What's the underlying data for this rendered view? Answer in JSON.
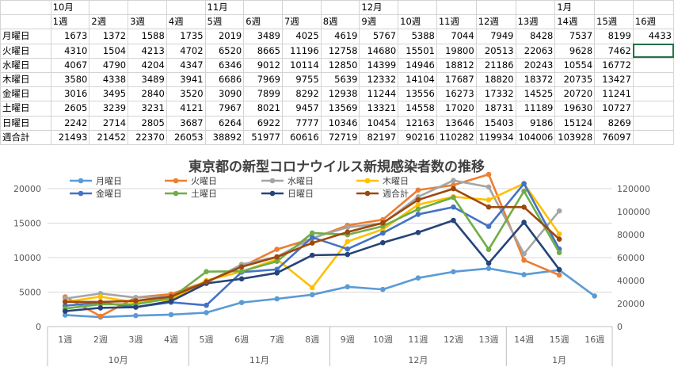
{
  "sheet": {
    "month_row": [
      "",
      "10月",
      "",
      "",
      "",
      "11月",
      "",
      "",
      "",
      "12月",
      "",
      "",
      "",
      "",
      "1月",
      "",
      ""
    ],
    "week_row": [
      "",
      "1週",
      "2週",
      "3週",
      "4週",
      "5週",
      "6週",
      "7週",
      "8週",
      "9週",
      "10週",
      "11週",
      "12週",
      "13週",
      "14週",
      "15週",
      "16週"
    ],
    "rows": [
      {
        "label": "月曜日",
        "cells": [
          "1673",
          "1372",
          "1588",
          "1735",
          "2019",
          "3489",
          "4025",
          "4619",
          "5767",
          "5388",
          "7044",
          "7949",
          "8428",
          "7537",
          "8199",
          "4433"
        ]
      },
      {
        "label": "火曜日",
        "cells": [
          "4310",
          "1504",
          "4213",
          "4702",
          "6520",
          "8665",
          "11196",
          "12758",
          "14680",
          "15501",
          "19800",
          "20513",
          "22063",
          "9628",
          "7462",
          ""
        ]
      },
      {
        "label": "水曜日",
        "cells": [
          "4067",
          "4790",
          "4204",
          "4347",
          "6346",
          "9012",
          "10114",
          "12850",
          "14399",
          "14946",
          "18812",
          "21186",
          "20243",
          "10554",
          "16772",
          ""
        ]
      },
      {
        "label": "木曜日",
        "cells": [
          "3580",
          "4338",
          "3489",
          "3941",
          "6686",
          "7969",
          "9755",
          "5639",
          "12332",
          "14104",
          "17687",
          "18820",
          "18372",
          "20735",
          "13427",
          ""
        ]
      },
      {
        "label": "金曜日",
        "cells": [
          "3016",
          "3495",
          "2840",
          "3520",
          "3090",
          "7899",
          "8292",
          "12938",
          "11244",
          "13556",
          "16273",
          "17332",
          "14525",
          "20720",
          "11241",
          ""
        ]
      },
      {
        "label": "土曜日",
        "cells": [
          "2605",
          "3239",
          "3231",
          "4121",
          "7967",
          "8021",
          "9457",
          "13569",
          "13321",
          "14558",
          "17020",
          "18731",
          "11189",
          "19630",
          "10727",
          ""
        ]
      },
      {
        "label": "日曜日",
        "cells": [
          "2242",
          "2714",
          "2805",
          "3687",
          "6264",
          "6922",
          "7777",
          "10346",
          "10454",
          "12163",
          "13646",
          "15403",
          "9186",
          "15124",
          "8269",
          ""
        ]
      },
      {
        "label": "週合計",
        "cells": [
          "21493",
          "21452",
          "22370",
          "26053",
          "38892",
          "51977",
          "60616",
          "72719",
          "82197",
          "90216",
          "110282",
          "119934",
          "104006",
          "103928",
          "76097",
          ""
        ]
      }
    ]
  },
  "chart_data": {
    "type": "line",
    "title": "東京都の新型コロナウイルス新規感染者数の推移",
    "categories": [
      "1週",
      "2週",
      "3週",
      "4週",
      "5週",
      "6週",
      "7週",
      "8週",
      "9週",
      "10週",
      "11週",
      "12週",
      "13週",
      "14週",
      "15週",
      "16週"
    ],
    "groups": [
      {
        "label": "10月",
        "span": [
          0,
          3
        ]
      },
      {
        "label": "11月",
        "span": [
          4,
          7
        ]
      },
      {
        "label": "12月",
        "span": [
          8,
          12
        ]
      },
      {
        "label": "1月",
        "span": [
          13,
          15
        ]
      }
    ],
    "ylim_left": [
      0,
      20000
    ],
    "yticks_left": [
      0,
      5000,
      10000,
      15000,
      20000
    ],
    "ylim_right": [
      0,
      120000
    ],
    "yticks_right": [
      0,
      20000,
      40000,
      60000,
      80000,
      100000,
      120000
    ],
    "grid": true,
    "legend": "top",
    "series": [
      {
        "name": "月曜日",
        "color": "#5B9BD5",
        "axis": "left",
        "values": [
          1673,
          1372,
          1588,
          1735,
          2019,
          3489,
          4025,
          4619,
          5767,
          5388,
          7044,
          7949,
          8428,
          7537,
          8199,
          4433
        ]
      },
      {
        "name": "火曜日",
        "color": "#ED7D31",
        "axis": "left",
        "values": [
          4310,
          1504,
          4213,
          4702,
          6520,
          8665,
          11196,
          12758,
          14680,
          15501,
          19800,
          20513,
          22063,
          9628,
          7462,
          null
        ]
      },
      {
        "name": "水曜日",
        "color": "#A5A5A5",
        "axis": "left",
        "values": [
          4067,
          4790,
          4204,
          4347,
          6346,
          9012,
          10114,
          12850,
          14399,
          14946,
          18812,
          21186,
          20243,
          10554,
          16772,
          null
        ]
      },
      {
        "name": "木曜日",
        "color": "#FFC000",
        "axis": "left",
        "values": [
          3580,
          4338,
          3489,
          3941,
          6686,
          7969,
          9755,
          5639,
          12332,
          14104,
          17687,
          18820,
          18372,
          20735,
          13427,
          null
        ]
      },
      {
        "name": "金曜日",
        "color": "#4472C4",
        "axis": "left",
        "values": [
          3016,
          3495,
          2840,
          3520,
          3090,
          7899,
          8292,
          12938,
          11244,
          13556,
          16273,
          17332,
          14525,
          20720,
          11241,
          null
        ]
      },
      {
        "name": "土曜日",
        "color": "#70AD47",
        "axis": "left",
        "values": [
          2605,
          3239,
          3231,
          4121,
          7967,
          8021,
          9457,
          13569,
          13321,
          14558,
          17020,
          18731,
          11189,
          19630,
          10727,
          null
        ]
      },
      {
        "name": "日曜日",
        "color": "#264478",
        "axis": "left",
        "values": [
          2242,
          2714,
          2805,
          3687,
          6264,
          6922,
          7777,
          10346,
          10454,
          12163,
          13646,
          15403,
          9186,
          15124,
          8269,
          null
        ]
      },
      {
        "name": "週合計",
        "color": "#9E480E",
        "axis": "right",
        "values": [
          21493,
          21452,
          22370,
          26053,
          38892,
          51977,
          60616,
          72719,
          82197,
          90216,
          110282,
          119934,
          104006,
          103928,
          76097,
          null
        ]
      }
    ]
  }
}
